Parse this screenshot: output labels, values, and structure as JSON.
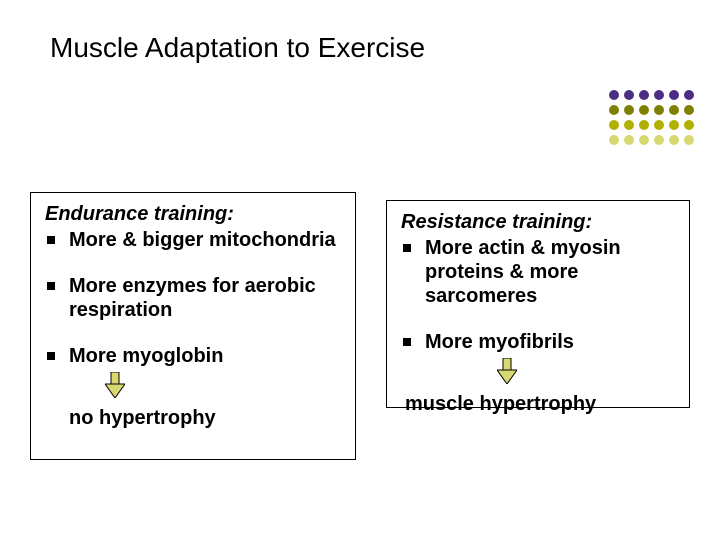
{
  "title": "Muscle Adaptation to Exercise",
  "dotGrid": {
    "rows": 4,
    "cols": 6,
    "dotSize": 10,
    "colors": [
      "#4b2e83",
      "#4b2e83",
      "#4b2e83",
      "#4b2e83",
      "#4b2e83",
      "#4b2e83",
      "#808000",
      "#808000",
      "#808000",
      "#808000",
      "#808000",
      "#808000",
      "#b0b000",
      "#b0b000",
      "#b0b000",
      "#b0b000",
      "#b0b000",
      "#b0b000",
      "#d8d870",
      "#d8d870",
      "#d8d870",
      "#d8d870",
      "#d8d870",
      "#d8d870"
    ]
  },
  "left": {
    "heading": "Endurance training:",
    "bullets": [
      "More & bigger mitochondria",
      "More enzymes for aerobic respiration",
      "More myoglobin"
    ],
    "result": "no hypertrophy",
    "arrowColor": "#d8d870",
    "arrowStroke": "#000000"
  },
  "right": {
    "heading": "Resistance training:",
    "bullets": [
      "More actin & myosin proteins & more sarcomeres",
      "More myofibrils"
    ],
    "result": "muscle hypertrophy",
    "arrowColor": "#d8d870",
    "arrowStroke": "#000000"
  },
  "boxBorderColor": "#000000",
  "backgroundColor": "#ffffff",
  "textColor": "#000000",
  "titleFontSize": 28,
  "bodyFontSize": 20
}
